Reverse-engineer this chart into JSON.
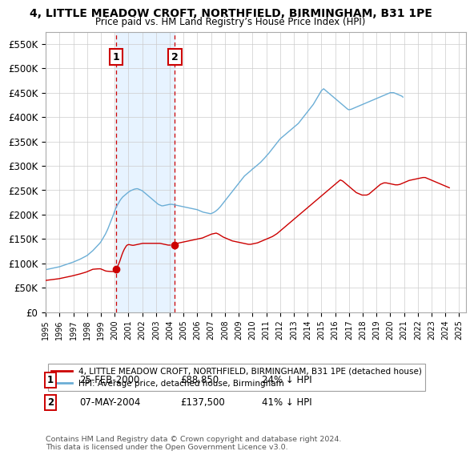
{
  "title": "4, LITTLE MEADOW CROFT, NORTHFIELD, BIRMINGHAM, B31 1PE",
  "subtitle": "Price paid vs. HM Land Registry’s House Price Index (HPI)",
  "ylim": [
    0,
    575000
  ],
  "yticks": [
    0,
    50000,
    100000,
    150000,
    200000,
    250000,
    300000,
    350000,
    400000,
    450000,
    500000,
    550000
  ],
  "ytick_labels": [
    "£0",
    "£50K",
    "£100K",
    "£150K",
    "£200K",
    "£250K",
    "£300K",
    "£350K",
    "£400K",
    "£450K",
    "£500K",
    "£550K"
  ],
  "sale1_date_f": 2000.12,
  "sale1_price": 88850,
  "sale1_label": "1",
  "sale2_date_f": 2004.37,
  "sale2_price": 137500,
  "sale2_label": "2",
  "hpi_color": "#6baed6",
  "sale_color": "#cc0000",
  "vline_color": "#cc0000",
  "shade_color": "#ddeeff",
  "legend_label1": "4, LITTLE MEADOW CROFT, NORTHFIELD, BIRMINGHAM, B31 1PE (detached house)",
  "legend_label2": "HPI: Average price, detached house, Birmingham",
  "footnote": "Contains HM Land Registry data © Crown copyright and database right 2024.\nThis data is licensed under the Open Government Licence v3.0.",
  "background_color": "#ffffff",
  "hpi_monthly": [
    87000,
    87500,
    88000,
    88500,
    89000,
    89500,
    90000,
    90500,
    91000,
    91500,
    92000,
    92500,
    93000,
    93800,
    94600,
    95400,
    96200,
    97000,
    97800,
    98600,
    99400,
    100200,
    101000,
    101800,
    102600,
    103600,
    104600,
    105600,
    106600,
    107600,
    108600,
    109800,
    111000,
    112200,
    113400,
    114600,
    116000,
    118000,
    120000,
    122000,
    124000,
    126000,
    128500,
    131000,
    133500,
    136000,
    138500,
    141000,
    144000,
    148000,
    152000,
    156000,
    160000,
    165000,
    170000,
    176000,
    182000,
    188000,
    194000,
    200000,
    207000,
    213000,
    218000,
    222000,
    226000,
    230000,
    233000,
    236000,
    238000,
    240000,
    242000,
    244000,
    246000,
    247500,
    249000,
    250000,
    251000,
    252000,
    252500,
    253000,
    253000,
    252000,
    251000,
    250000,
    249000,
    247000,
    245000,
    243000,
    241000,
    239000,
    237000,
    235000,
    233000,
    231000,
    229000,
    227000,
    225000,
    223000,
    221000,
    220000,
    219000,
    218000,
    218000,
    218500,
    219000,
    219500,
    220000,
    220500,
    221000,
    221000,
    221000,
    220500,
    220000,
    219500,
    219000,
    218500,
    218000,
    217500,
    217000,
    216500,
    216000,
    215500,
    215000,
    214500,
    214000,
    213500,
    213000,
    212500,
    212000,
    211500,
    211000,
    210500,
    210000,
    209000,
    208000,
    207000,
    206000,
    205000,
    204500,
    204000,
    203500,
    203000,
    202500,
    202000,
    202000,
    203000,
    204000,
    205500,
    207000,
    209000,
    211000,
    213500,
    216000,
    219000,
    222000,
    225000,
    228000,
    231000,
    234000,
    237000,
    240000,
    243000,
    246000,
    249000,
    252000,
    255000,
    258000,
    261000,
    264000,
    267000,
    270000,
    273000,
    276000,
    279000,
    281000,
    283000,
    285000,
    287000,
    289000,
    291000,
    293500,
    295000,
    297000,
    299000,
    301000,
    303000,
    305000,
    307000,
    309500,
    312000,
    314500,
    317000,
    320000,
    322500,
    325000,
    328000,
    331000,
    334000,
    337000,
    340000,
    343000,
    346000,
    349000,
    352000,
    355000,
    357000,
    359000,
    361000,
    363000,
    365000,
    367000,
    369000,
    371000,
    373000,
    375000,
    377000,
    379000,
    381000,
    383000,
    385000,
    387000,
    390000,
    393000,
    396000,
    399000,
    402000,
    405000,
    408000,
    411000,
    414000,
    417000,
    420000,
    423000,
    426000,
    430000,
    434000,
    438000,
    442000,
    446000,
    450000,
    454000,
    456000,
    458000,
    456000,
    454000,
    452000,
    450000,
    448000,
    446000,
    444000,
    442000,
    440000,
    438000,
    436000,
    434000,
    432000,
    430000,
    428000,
    426000,
    424000,
    422000,
    420000,
    418000,
    416000,
    415000,
    415500,
    416000,
    417000,
    418000,
    419000,
    420000,
    421000,
    422000,
    423000,
    424000,
    425000,
    426000,
    427000,
    428000,
    429000,
    430000,
    431000,
    432000,
    433000,
    434000,
    435000,
    436000,
    437000,
    438000,
    439000,
    440000,
    441000,
    442000,
    443000,
    444000,
    445000,
    446000,
    447000,
    448000,
    449000,
    450000,
    450000,
    450000,
    450000,
    449000,
    448000,
    447000,
    446000,
    445000,
    444000,
    443000,
    441000
  ],
  "red_monthly_seg1": [
    65000,
    65300,
    65600,
    65900,
    66200,
    66500,
    66800,
    67100,
    67400,
    67700,
    68000,
    68300,
    68700,
    69200,
    69700,
    70200,
    70700,
    71200,
    71700,
    72200,
    72700,
    73200,
    73700,
    74200,
    74800,
    75400,
    76000,
    76600,
    77200,
    77800,
    78400,
    79100,
    79800,
    80500,
    81200,
    81900,
    82800,
    83800,
    84800,
    85800,
    86800,
    87800,
    88000,
    88200,
    88400,
    88600,
    88700,
    88800,
    88500,
    87500,
    86500,
    85500,
    84500,
    84000,
    83800,
    83600,
    83400,
    83300,
    83200,
    83100
  ],
  "red_monthly_seg2_extra": [
    88850,
    93000,
    98000,
    104000,
    111000,
    118000,
    124000,
    129000,
    133000,
    136500,
    138000,
    138500,
    138000,
    137500,
    137000,
    137000,
    137500,
    138000,
    138500,
    139000,
    139500,
    140000,
    140500,
    141000,
    141000,
    141000,
    141000,
    141000,
    141000,
    141000,
    141000,
    141000,
    141000,
    141000,
    141000,
    141000,
    141000,
    141000,
    141000,
    140500,
    140000,
    139500,
    139000,
    138500,
    138000,
    137500,
    137300,
    137500
  ],
  "red_monthly_seg3_extra": [
    137500,
    139000,
    140500,
    141500,
    142000,
    142500,
    143000,
    143500,
    144000,
    144500,
    145000,
    145500,
    146000,
    146500,
    147000,
    147500,
    148000,
    148500,
    149000,
    149500,
    150000,
    150500,
    151000,
    151500,
    152000,
    153000,
    154000,
    155000,
    156000,
    157000,
    158000,
    159000,
    160000,
    160500,
    161000,
    161500,
    162000,
    161000,
    160000,
    158500,
    157000,
    155500,
    154000,
    153000,
    152000,
    151000,
    150000,
    149000,
    148000,
    147000,
    146000,
    145500,
    145000,
    144500,
    144000,
    143500,
    143000,
    142500,
    142000,
    141500,
    141000,
    140500,
    140000,
    139500,
    139000,
    139000,
    139000,
    139500,
    140000,
    140500,
    141000,
    141500,
    142000,
    143000,
    144000,
    145000,
    146000,
    147000,
    148000,
    149000,
    150000,
    151000,
    152000,
    153000,
    154000,
    155000,
    156500,
    158000,
    159500,
    161000,
    163000,
    165000,
    167000,
    169000,
    171000,
    173000,
    175000,
    177000,
    179000,
    181000,
    183000,
    185000,
    187000,
    189000,
    191000,
    193000,
    195000,
    197000,
    199000,
    201000,
    203000,
    205000,
    207000,
    209000,
    211000,
    213000,
    215000,
    217000,
    219000,
    221000,
    223000,
    225000,
    227000,
    229000,
    231000,
    233000,
    235000,
    237000,
    239000,
    241000,
    243000,
    245000,
    247000,
    249000,
    251000,
    253000,
    255000,
    257000,
    259000,
    261000,
    263000,
    265000,
    267000,
    269000,
    271000,
    270000,
    269000,
    267000,
    265000,
    263000,
    261000,
    259000,
    257000,
    255000,
    253000,
    251000,
    249000,
    247000,
    245000,
    244000,
    243000,
    242000,
    241000,
    240000,
    240000,
    240000,
    240000,
    240000,
    241000,
    242000,
    244000,
    246000,
    248000,
    250000,
    252000,
    254000,
    256000,
    258000,
    260000,
    262000,
    263000,
    264000,
    265000,
    265000,
    265000,
    264500,
    264000,
    263500,
    263000,
    262500,
    262000,
    261500,
    261000,
    261000,
    261000,
    261500,
    262000,
    263000,
    264000,
    265000,
    266000,
    267000,
    268000,
    269000,
    270000,
    270500,
    271000,
    271500,
    272000,
    272500,
    273000,
    273500,
    274000,
    274500,
    275000,
    275500,
    276000,
    276000,
    276000,
    275000,
    274000,
    273000,
    272000,
    271000,
    270000,
    269000,
    268000,
    267000,
    266000,
    265000,
    264000,
    263000,
    262000,
    261000,
    260000,
    259000,
    258000,
    257000,
    256000,
    255000
  ]
}
